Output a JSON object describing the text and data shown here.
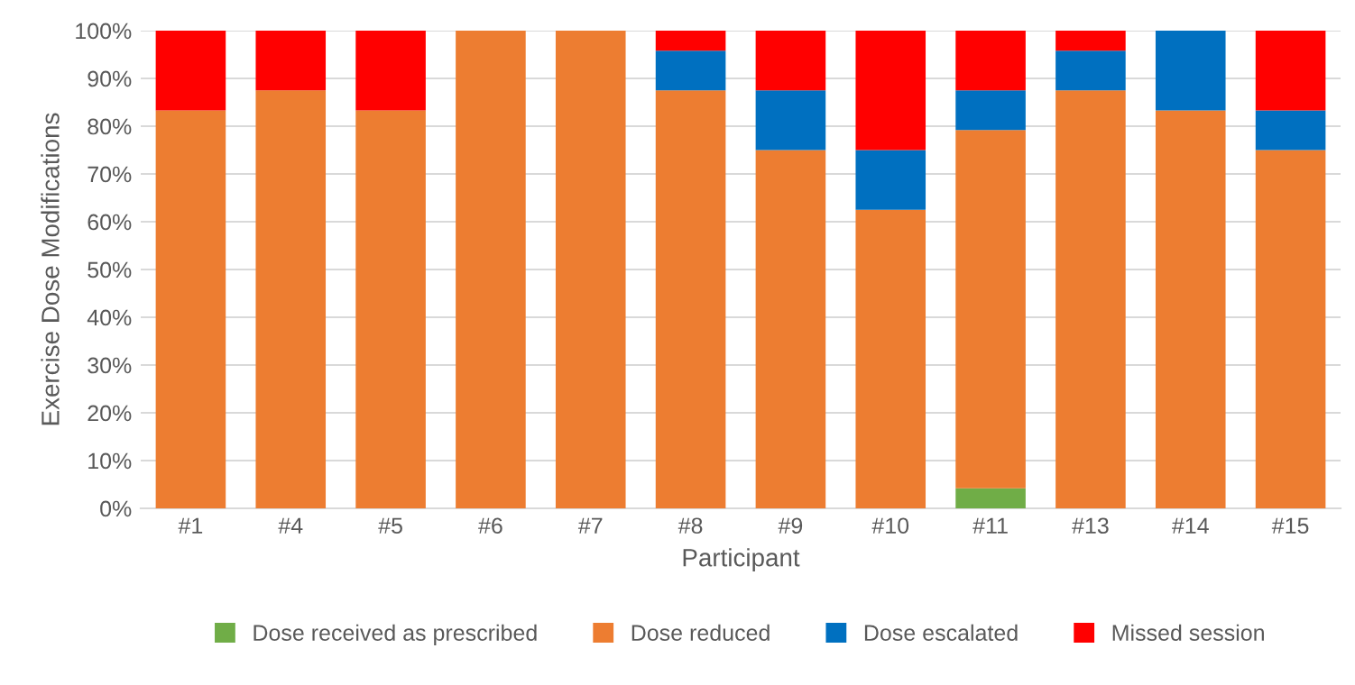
{
  "chart_data": {
    "type": "bar",
    "stacked": true,
    "xlabel": "Participant",
    "ylabel": "Exercise Dose Modifications",
    "categories": [
      "#1",
      "#4",
      "#5",
      "#6",
      "#7",
      "#8",
      "#9",
      "#10",
      "#11",
      "#13",
      "#14",
      "#15"
    ],
    "series": [
      {
        "name": "Dose received as prescribed",
        "color": "#70ad47",
        "values": [
          0,
          0,
          0,
          0,
          0,
          0,
          0,
          0,
          4.2,
          0,
          0,
          0
        ]
      },
      {
        "name": "Dose reduced",
        "color": "#ed7d31",
        "values": [
          83.3,
          87.5,
          83.3,
          100,
          100,
          87.5,
          75,
          62.5,
          75,
          87.5,
          83.3,
          75
        ]
      },
      {
        "name": "Dose escalated",
        "color": "#0070c0",
        "values": [
          0,
          0,
          0,
          0,
          0,
          8.3,
          12.5,
          12.5,
          8.3,
          8.3,
          16.7,
          8.3
        ]
      },
      {
        "name": "Missed session",
        "color": "#ff0000",
        "values": [
          16.7,
          12.5,
          16.7,
          0,
          0,
          4.2,
          12.5,
          25,
          12.5,
          4.2,
          0,
          16.7
        ]
      }
    ],
    "ylim": [
      0,
      100
    ],
    "yticks": [
      {
        "value": 0,
        "label": "0%"
      },
      {
        "value": 10,
        "label": "10%"
      },
      {
        "value": 20,
        "label": "20%"
      },
      {
        "value": 30,
        "label": "30%"
      },
      {
        "value": 40,
        "label": "40%"
      },
      {
        "value": 50,
        "label": "50%"
      },
      {
        "value": 60,
        "label": "60%"
      },
      {
        "value": 70,
        "label": "70%"
      },
      {
        "value": 80,
        "label": "80%"
      },
      {
        "value": 90,
        "label": "90%"
      },
      {
        "value": 100,
        "label": "100%"
      }
    ],
    "grid": "y",
    "legend": "bottom"
  }
}
